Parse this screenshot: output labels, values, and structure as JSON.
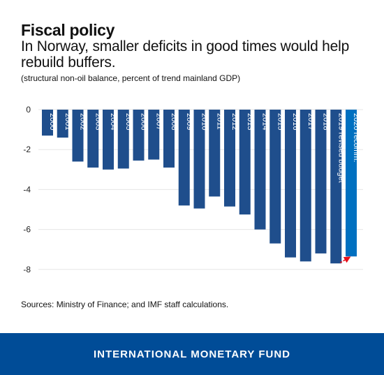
{
  "title": "Fiscal policy",
  "subtitle": "In Norway, smaller deficits in good times would help rebuild buffers.",
  "note": "(structural non-oil balance, percent of trend mainland GDP)",
  "source": "Sources: Ministry of Finance; and IMF staff calculations.",
  "footer": "INTERNATIONAL MONETARY FUND",
  "colors": {
    "bar": "#1f4e8c",
    "highlight": "#0070c0",
    "arrow": "#e8101a",
    "grid": "#e6e6e6"
  },
  "chart_data": {
    "type": "bar",
    "categories": [
      "2000",
      "2001",
      "2002",
      "2003",
      "2004",
      "2005",
      "2006",
      "2007",
      "2008",
      "2009",
      "2010",
      "2011",
      "2012",
      "2013",
      "2014",
      "2015",
      "2016",
      "2017",
      "2018",
      "2019 revised budget",
      "2020 recomm."
    ],
    "values": [
      -1.3,
      -1.4,
      -2.6,
      -2.9,
      -3.0,
      -2.95,
      -2.55,
      -2.5,
      -2.9,
      -4.8,
      -4.95,
      -4.35,
      -4.85,
      -5.25,
      -6.0,
      -6.7,
      -7.4,
      -7.6,
      -7.2,
      -7.7,
      -7.35
    ],
    "highlight_index": 20,
    "yticks": [
      0,
      -2,
      -4,
      -6,
      -8
    ],
    "ylim": [
      -8.5,
      0
    ],
    "xlabel": "",
    "ylabel": "",
    "grid": true,
    "annotation": "arrow from 2019 revised budget to 2020 recomm."
  }
}
